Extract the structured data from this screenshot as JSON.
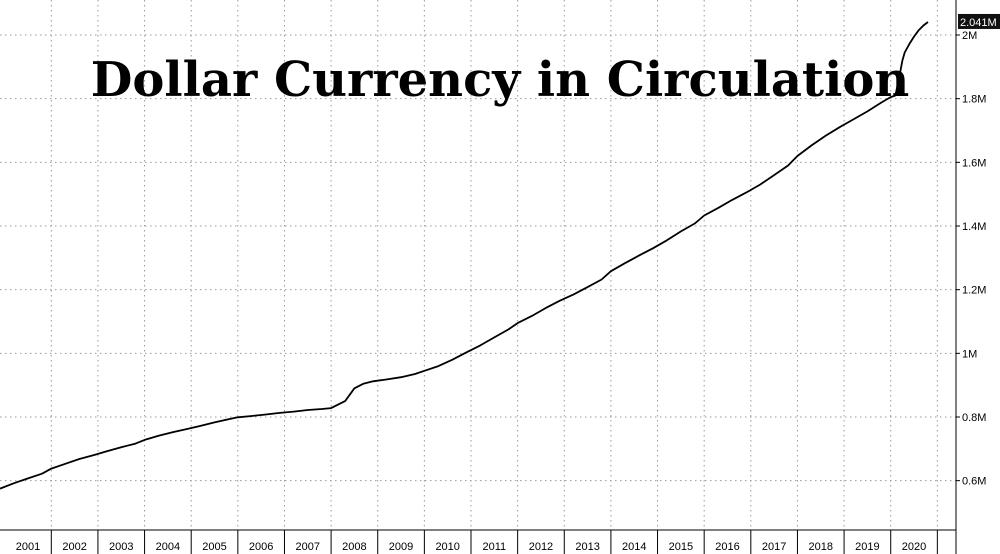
{
  "chart_data": {
    "type": "line",
    "title": "Dollar Currency in Circulation",
    "xlabel": "",
    "ylabel": "",
    "x_ticks": [
      "2001",
      "2002",
      "2003",
      "2004",
      "2005",
      "2006",
      "2007",
      "2008",
      "2009",
      "2010",
      "2011",
      "2012",
      "2013",
      "2014",
      "2015",
      "2016",
      "2017",
      "2018",
      "2019",
      "2020"
    ],
    "y_ticks": [
      {
        "value": 600000,
        "label": "0.6M"
      },
      {
        "value": 800000,
        "label": "0.8M"
      },
      {
        "value": 1000000,
        "label": "1M"
      },
      {
        "value": 1200000,
        "label": "1.2M"
      },
      {
        "value": 1400000,
        "label": "1.4M"
      },
      {
        "value": 1600000,
        "label": "1.6M"
      },
      {
        "value": 1800000,
        "label": "1.8M"
      },
      {
        "value": 2000000,
        "label": "2M"
      }
    ],
    "xlim": [
      2000.9,
      2021.4
    ],
    "ylim": [
      445000,
      2110000
    ],
    "grid": true,
    "y_axis_position": "right",
    "last_value_label": "2.041M",
    "series": [
      {
        "color": "#000000",
        "x": [
          2000.9,
          2001.2,
          2001.5,
          2001.8,
          2002.0,
          2002.3,
          2002.6,
          2002.9,
          2003.2,
          2003.5,
          2003.8,
          2004.0,
          2004.3,
          2004.6,
          2004.9,
          2005.2,
          2005.5,
          2005.8,
          2006.0,
          2006.3,
          2006.6,
          2006.9,
          2007.2,
          2007.5,
          2007.8,
          2008.0,
          2008.3,
          2008.5,
          2008.7,
          2008.9,
          2009.2,
          2009.5,
          2009.8,
          2010.0,
          2010.3,
          2010.6,
          2010.9,
          2011.2,
          2011.5,
          2011.8,
          2012.0,
          2012.3,
          2012.6,
          2012.9,
          2013.2,
          2013.5,
          2013.8,
          2014.0,
          2014.3,
          2014.6,
          2014.9,
          2015.2,
          2015.5,
          2015.8,
          2016.0,
          2016.3,
          2016.6,
          2016.9,
          2017.2,
          2017.5,
          2017.8,
          2018.0,
          2018.3,
          2018.6,
          2018.9,
          2019.2,
          2019.5,
          2019.8,
          2020.0,
          2020.1,
          2020.2,
          2020.25,
          2020.3,
          2020.4,
          2020.5,
          2020.6,
          2020.7,
          2020.8
        ],
        "values": [
          575000,
          592000,
          607000,
          622000,
          638000,
          653000,
          668000,
          680000,
          693000,
          705000,
          716000,
          728000,
          741000,
          752000,
          762000,
          772000,
          783000,
          793000,
          799000,
          803000,
          808000,
          813000,
          817000,
          822000,
          825000,
          828000,
          850000,
          890000,
          905000,
          912000,
          918000,
          925000,
          935000,
          945000,
          960000,
          980000,
          1003000,
          1025000,
          1050000,
          1075000,
          1095000,
          1117000,
          1142000,
          1165000,
          1185000,
          1208000,
          1232000,
          1258000,
          1283000,
          1307000,
          1330000,
          1355000,
          1383000,
          1408000,
          1433000,
          1457000,
          1482000,
          1505000,
          1530000,
          1560000,
          1590000,
          1620000,
          1653000,
          1683000,
          1710000,
          1735000,
          1760000,
          1788000,
          1805000,
          1810000,
          1880000,
          1920000,
          1945000,
          1972000,
          1995000,
          2015000,
          2030000,
          2041000
        ]
      }
    ]
  }
}
